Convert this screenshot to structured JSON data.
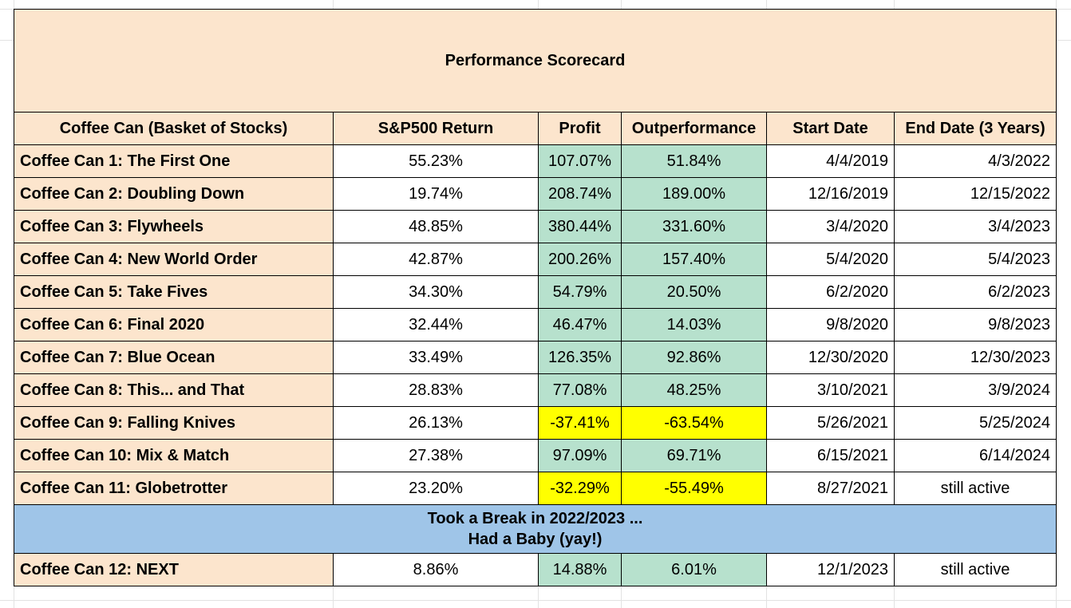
{
  "title": "Performance Scorecard",
  "columns": [
    "Coffee Can (Basket of Stocks)",
    "S&P500 Return",
    "Profit",
    "Outperformance",
    "Start Date",
    "End Date (3 Years)"
  ],
  "rows": [
    {
      "name": "Coffee Can 1: The First One",
      "sp500": "55.23%",
      "profit": "107.07%",
      "outperformance": "51.84%",
      "start": "4/4/2019",
      "end": "4/3/2022",
      "status": "positive",
      "end_active": false
    },
    {
      "name": "Coffee Can 2: Doubling Down",
      "sp500": "19.74%",
      "profit": "208.74%",
      "outperformance": "189.00%",
      "start": "12/16/2019",
      "end": "12/15/2022",
      "status": "positive",
      "end_active": false
    },
    {
      "name": "Coffee Can 3: Flywheels",
      "sp500": "48.85%",
      "profit": "380.44%",
      "outperformance": "331.60%",
      "start": "3/4/2020",
      "end": "3/4/2023",
      "status": "positive",
      "end_active": false
    },
    {
      "name": "Coffee Can 4: New World Order",
      "sp500": "42.87%",
      "profit": "200.26%",
      "outperformance": "157.40%",
      "start": "5/4/2020",
      "end": "5/4/2023",
      "status": "positive",
      "end_active": false
    },
    {
      "name": "Coffee Can 5: Take Fives",
      "sp500": "34.30%",
      "profit": "54.79%",
      "outperformance": "20.50%",
      "start": "6/2/2020",
      "end": "6/2/2023",
      "status": "positive",
      "end_active": false
    },
    {
      "name": "Coffee Can 6: Final 2020",
      "sp500": "32.44%",
      "profit": "46.47%",
      "outperformance": "14.03%",
      "start": "9/8/2020",
      "end": "9/8/2023",
      "status": "positive",
      "end_active": false
    },
    {
      "name": "Coffee Can 7: Blue Ocean",
      "sp500": "33.49%",
      "profit": "126.35%",
      "outperformance": "92.86%",
      "start": "12/30/2020",
      "end": "12/30/2023",
      "status": "positive",
      "end_active": false
    },
    {
      "name": "Coffee Can 8: This... and That",
      "sp500": "28.83%",
      "profit": "77.08%",
      "outperformance": "48.25%",
      "start": "3/10/2021",
      "end": "3/9/2024",
      "status": "positive",
      "end_active": false
    },
    {
      "name": "Coffee Can 9: Falling Knives",
      "sp500": "26.13%",
      "profit": "-37.41%",
      "outperformance": "-63.54%",
      "start": "5/26/2021",
      "end": "5/25/2024",
      "status": "negative",
      "end_active": false
    },
    {
      "name": "Coffee Can 10: Mix & Match",
      "sp500": "27.38%",
      "profit": "97.09%",
      "outperformance": "69.71%",
      "start": "6/15/2021",
      "end": "6/14/2024",
      "status": "positive",
      "end_active": false
    },
    {
      "name": "Coffee Can 11: Globetrotter",
      "sp500": "23.20%",
      "profit": "-32.29%",
      "outperformance": "-55.49%",
      "start": "8/27/2021",
      "end": "still active",
      "status": "negative",
      "end_active": true
    }
  ],
  "break_note": {
    "line1": "Took a Break in 2022/2023 ...",
    "line2": "Had a Baby (yay!)"
  },
  "final_row": {
    "name": "Coffee Can 12: NEXT",
    "sp500": "8.86%",
    "profit": "14.88%",
    "outperformance": "6.01%",
    "start": "12/1/2023",
    "end": "still active",
    "status": "positive",
    "end_active": true
  },
  "colors": {
    "label_bg": "#fce5cd",
    "positive_bg": "#b7e1cd",
    "negative_bg": "#ffff00",
    "break_bg": "#9fc5e8"
  }
}
